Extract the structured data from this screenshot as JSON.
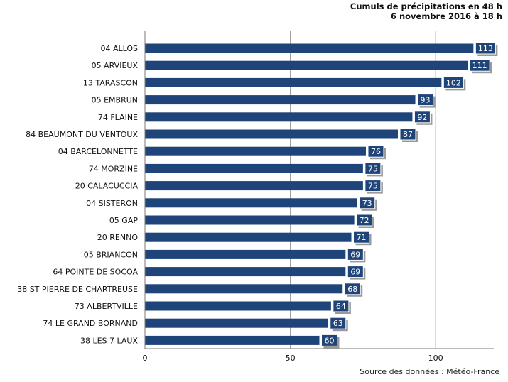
{
  "chart_data": {
    "type": "bar",
    "orientation": "horizontal",
    "title": "Cumuls de précipitations en 48 h",
    "subtitle": "6 novembre 2016 à 18 h",
    "categories": [
      "04 ALLOS",
      "05 ARVIEUX",
      "13 TARASCON",
      "05 EMBRUN",
      "74 FLAINE",
      "84 BEAUMONT DU VENTOUX",
      "04 BARCELONNETTE",
      "74 MORZINE",
      "20 CALACUCCIA",
      "04 SISTERON",
      "05 GAP",
      "20 RENNO",
      "05 BRIANCON",
      "64 POINTE DE SOCOA",
      "38 ST PIERRE DE CHARTREUSE",
      "73 ALBERTVILLE",
      "74 LE GRAND BORNAND",
      "38 LES 7 LAUX"
    ],
    "values": [
      113,
      111,
      102,
      93,
      92,
      87,
      76,
      75,
      75,
      73,
      72,
      71,
      69,
      69,
      68,
      64,
      63,
      60
    ],
    "xlim": [
      0,
      120
    ],
    "xticks": [
      "0",
      "50",
      "100"
    ],
    "grid": true,
    "colors": {
      "bar": "#1f4479",
      "label_bg": "#1f4479",
      "label_shadow": "#9a9a9a",
      "grid": "#9a9a9a"
    },
    "source": "Source des données : Météo-France"
  }
}
